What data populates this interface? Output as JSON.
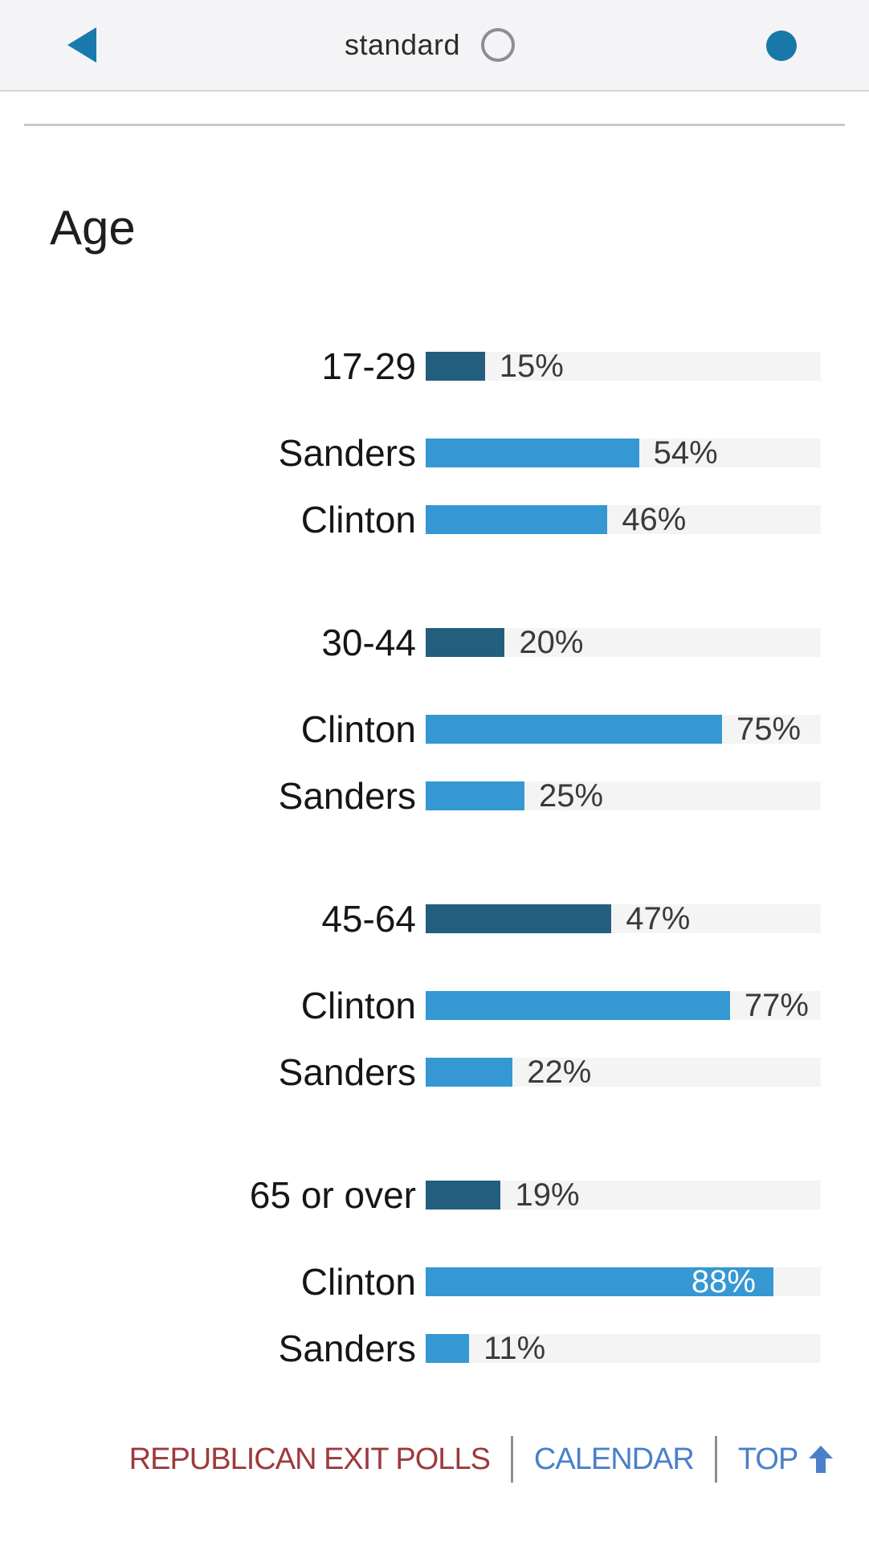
{
  "header": {
    "title": "standard",
    "back_icon_color": "#1a7aad",
    "dot_color": "#1878a8"
  },
  "section": {
    "title": "Age"
  },
  "chart_data": {
    "type": "bar",
    "orientation": "horizontal",
    "title": "Age",
    "unit": "percent",
    "xlim": [
      0,
      100
    ],
    "track_color": "#f4f4f4",
    "group_bar_color": "#235e7e",
    "candidate_bar_color": "#3598d2",
    "groups": [
      {
        "label": "17-29",
        "value": 15,
        "display": "15%",
        "rows": [
          {
            "label": "Sanders",
            "value": 54,
            "display": "54%"
          },
          {
            "label": "Clinton",
            "value": 46,
            "display": "46%"
          }
        ]
      },
      {
        "label": "30-44",
        "value": 20,
        "display": "20%",
        "rows": [
          {
            "label": "Clinton",
            "value": 75,
            "display": "75%"
          },
          {
            "label": "Sanders",
            "value": 25,
            "display": "25%"
          }
        ]
      },
      {
        "label": "45-64",
        "value": 47,
        "display": "47%",
        "rows": [
          {
            "label": "Clinton",
            "value": 77,
            "display": "77%"
          },
          {
            "label": "Sanders",
            "value": 22,
            "display": "22%"
          }
        ]
      },
      {
        "label": "65 or over",
        "value": 19,
        "display": "19%",
        "rows": [
          {
            "label": "Clinton",
            "value": 88,
            "display": "88%",
            "value_inside": true
          },
          {
            "label": "Sanders",
            "value": 11,
            "display": "11%"
          }
        ]
      }
    ]
  },
  "footer": {
    "links": [
      {
        "label": "REPUBLICAN EXIT POLLS",
        "color": "#9e393c"
      },
      {
        "label": "CALENDAR",
        "color": "#4b80c8"
      },
      {
        "label": "TOP",
        "color": "#4b80c8",
        "icon": "arrow-up-icon"
      }
    ],
    "separator_color": "#8e8e8e"
  }
}
